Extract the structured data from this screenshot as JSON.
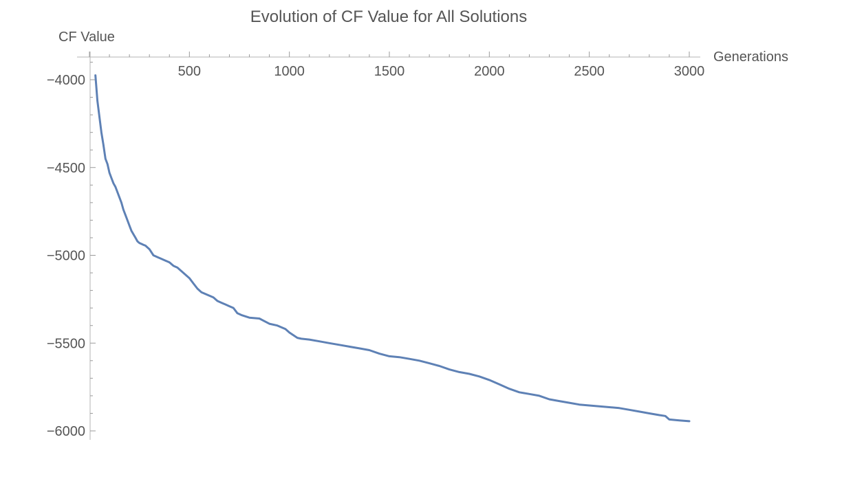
{
  "chart_data": {
    "type": "line",
    "title": "Evolution of CF Value for All Solutions",
    "xlabel": "Generations",
    "ylabel": "CF Value",
    "xlim": [
      0,
      3050
    ],
    "ylim": [
      -6050,
      -3900
    ],
    "x_ticks": [
      500,
      1000,
      1500,
      2000,
      2500,
      3000
    ],
    "y_ticks": [
      -4000,
      -4500,
      -5000,
      -5500,
      -6000
    ],
    "x_axis_position": "top",
    "grid": false,
    "line_color": "#5e81b5",
    "series": [
      {
        "x": [
          30,
          40,
          50,
          60,
          70,
          80,
          90,
          100,
          110,
          120,
          130,
          140,
          150,
          160,
          170,
          180,
          190,
          200,
          210,
          220,
          230,
          240,
          250,
          260,
          270,
          280,
          290,
          300,
          320,
          340,
          360,
          380,
          400,
          420,
          440,
          460,
          480,
          500,
          520,
          540,
          560,
          580,
          600,
          620,
          640,
          660,
          680,
          700,
          720,
          740,
          760,
          800,
          850,
          900,
          940,
          980,
          1000,
          1020,
          1040,
          1060,
          1100,
          1150,
          1200,
          1250,
          1300,
          1350,
          1400,
          1450,
          1500,
          1550,
          1600,
          1650,
          1700,
          1750,
          1800,
          1850,
          1900,
          1950,
          2000,
          2050,
          2100,
          2150,
          2200,
          2250,
          2300,
          2350,
          2400,
          2450,
          2500,
          2550,
          2600,
          2650,
          2700,
          2750,
          2800,
          2850,
          2880,
          2900,
          2950,
          3000
        ],
        "y": [
          -3975,
          -4120,
          -4210,
          -4300,
          -4370,
          -4450,
          -4480,
          -4530,
          -4560,
          -4590,
          -4610,
          -4640,
          -4670,
          -4700,
          -4740,
          -4770,
          -4800,
          -4830,
          -4860,
          -4880,
          -4900,
          -4920,
          -4930,
          -4935,
          -4940,
          -4945,
          -4955,
          -4965,
          -5000,
          -5010,
          -5020,
          -5030,
          -5040,
          -5060,
          -5070,
          -5090,
          -5110,
          -5130,
          -5160,
          -5190,
          -5210,
          -5220,
          -5230,
          -5240,
          -5260,
          -5270,
          -5280,
          -5290,
          -5300,
          -5330,
          -5340,
          -5355,
          -5360,
          -5390,
          -5400,
          -5420,
          -5440,
          -5455,
          -5470,
          -5475,
          -5480,
          -5490,
          -5500,
          -5510,
          -5520,
          -5530,
          -5540,
          -5560,
          -5575,
          -5580,
          -5590,
          -5600,
          -5615,
          -5630,
          -5650,
          -5665,
          -5675,
          -5690,
          -5710,
          -5735,
          -5760,
          -5780,
          -5790,
          -5800,
          -5820,
          -5830,
          -5840,
          -5850,
          -5855,
          -5860,
          -5865,
          -5870,
          -5880,
          -5890,
          -5900,
          -5910,
          -5915,
          -5935,
          -5940,
          -5945
        ]
      }
    ]
  }
}
